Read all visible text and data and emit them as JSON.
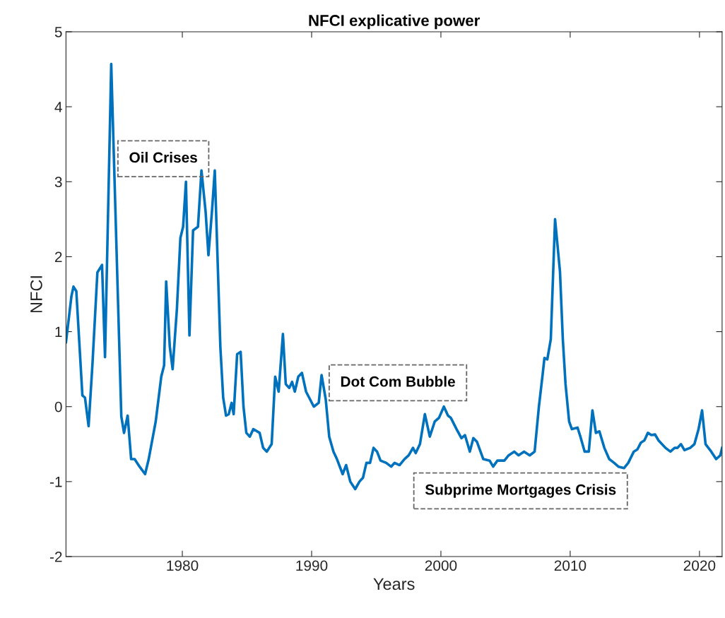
{
  "chart_data": {
    "type": "line",
    "title": "NFCI explicative power",
    "xlabel": "Years",
    "ylabel": "NFCI",
    "x": [
      1971.0,
      1971.42,
      1971.58,
      1971.8,
      1972.27,
      1972.47,
      1972.75,
      1973.05,
      1973.43,
      1973.79,
      1974.02,
      1974.5,
      1975.28,
      1975.49,
      1975.77,
      1976.04,
      1976.31,
      1976.69,
      1977.12,
      1977.4,
      1977.94,
      1978.37,
      1978.59,
      1978.75,
      1979.03,
      1979.25,
      1979.58,
      1979.85,
      1980.06,
      1980.28,
      1980.55,
      1980.83,
      1981.21,
      1981.48,
      1981.8,
      1982.02,
      1982.29,
      1982.51,
      1982.72,
      1982.94,
      1983.16,
      1983.38,
      1983.59,
      1983.81,
      1983.97,
      1984.24,
      1984.51,
      1984.73,
      1984.95,
      1985.22,
      1985.49,
      1985.98,
      1986.25,
      1986.53,
      1986.91,
      1987.18,
      1987.45,
      1987.78,
      1988.0,
      1988.27,
      1988.49,
      1988.7,
      1988.97,
      1989.25,
      1989.57,
      1990.17,
      1990.55,
      1990.77,
      1991.09,
      1991.36,
      1991.69,
      1991.96,
      1992.4,
      1992.67,
      1992.99,
      1993.37,
      1993.7,
      1993.97,
      1994.24,
      1994.52,
      1994.79,
      1995.06,
      1995.33,
      1995.77,
      1996.15,
      1996.42,
      1996.8,
      1997.18,
      1997.51,
      1997.84,
      1998.05,
      1998.38,
      1998.76,
      1999.14,
      1999.52,
      1999.85,
      2000.23,
      2000.55,
      2000.77,
      2001.21,
      2001.59,
      2001.86,
      2002.24,
      2002.51,
      2002.79,
      2003.28,
      2003.77,
      2004.04,
      2004.37,
      2004.91,
      2005.24,
      2005.67,
      2006.0,
      2006.43,
      2006.87,
      2007.25,
      2007.58,
      2007.85,
      2008.01,
      2008.23,
      2008.5,
      2008.83,
      2009.21,
      2009.43,
      2009.64,
      2009.92,
      2010.13,
      2010.57,
      2010.79,
      2011.12,
      2011.44,
      2011.72,
      2011.99,
      2012.26,
      2012.64,
      2013.02,
      2013.4,
      2013.73,
      2014.16,
      2014.49,
      2014.92,
      2015.2,
      2015.47,
      2015.74,
      2016.01,
      2016.28,
      2016.56,
      2016.83,
      2017.37,
      2017.75,
      2018.08,
      2018.3,
      2018.57,
      2018.84,
      2019.28,
      2019.61,
      2019.93,
      2020.2,
      2020.47,
      2020.91,
      2021.29,
      2021.61,
      2021.75
    ],
    "series": [
      {
        "color": "#0072bd",
        "values": [
          0.86,
          1.47,
          1.6,
          1.54,
          0.15,
          0.12,
          -0.26,
          0.57,
          1.79,
          1.89,
          0.66,
          4.57,
          -0.13,
          -0.35,
          -0.12,
          -0.7,
          -0.7,
          -0.8,
          -0.9,
          -0.7,
          -0.2,
          0.4,
          0.55,
          1.67,
          0.8,
          0.5,
          1.3,
          2.25,
          2.4,
          3.0,
          0.95,
          2.35,
          2.4,
          3.15,
          2.6,
          2.02,
          2.6,
          3.15,
          2.0,
          0.8,
          0.12,
          -0.12,
          -0.1,
          0.05,
          -0.1,
          0.7,
          0.73,
          0.0,
          -0.35,
          -0.4,
          -0.3,
          -0.35,
          -0.55,
          -0.6,
          -0.5,
          0.4,
          0.2,
          0.97,
          0.3,
          0.25,
          0.33,
          0.2,
          0.4,
          0.45,
          0.2,
          0.0,
          0.05,
          0.42,
          0.1,
          -0.4,
          -0.6,
          -0.7,
          -0.9,
          -0.78,
          -1.0,
          -1.1,
          -1.0,
          -0.95,
          -0.75,
          -0.75,
          -0.55,
          -0.6,
          -0.72,
          -0.75,
          -0.8,
          -0.75,
          -0.78,
          -0.7,
          -0.65,
          -0.55,
          -0.62,
          -0.5,
          -0.1,
          -0.4,
          -0.2,
          -0.15,
          0.0,
          -0.12,
          -0.15,
          -0.3,
          -0.42,
          -0.38,
          -0.6,
          -0.42,
          -0.47,
          -0.7,
          -0.72,
          -0.8,
          -0.72,
          -0.72,
          -0.65,
          -0.6,
          -0.65,
          -0.6,
          -0.65,
          -0.6,
          0.0,
          0.4,
          0.65,
          0.63,
          0.9,
          2.5,
          1.8,
          0.9,
          0.3,
          -0.2,
          -0.3,
          -0.28,
          -0.4,
          -0.6,
          -0.6,
          -0.05,
          -0.35,
          -0.33,
          -0.55,
          -0.7,
          -0.75,
          -0.8,
          -0.82,
          -0.75,
          -0.6,
          -0.57,
          -0.48,
          -0.45,
          -0.35,
          -0.38,
          -0.37,
          -0.45,
          -0.55,
          -0.6,
          -0.55,
          -0.55,
          -0.5,
          -0.58,
          -0.55,
          -0.5,
          -0.3,
          -0.05,
          -0.5,
          -0.6,
          -0.7,
          -0.65,
          -0.55
        ]
      }
    ],
    "xlim": [
      1971.0,
      2021.75
    ],
    "ylim": [
      -2,
      5
    ],
    "xticks": [
      1980,
      1990,
      2000,
      2010,
      2020
    ],
    "yticks": [
      -2,
      -1,
      0,
      1,
      2,
      3,
      4,
      5
    ],
    "grid": false,
    "line_style": "solid",
    "marker": "none",
    "annotations": [
      "Oil Crises",
      "Dot Com Bubble",
      "Subprime Mortgages Crisis"
    ]
  }
}
